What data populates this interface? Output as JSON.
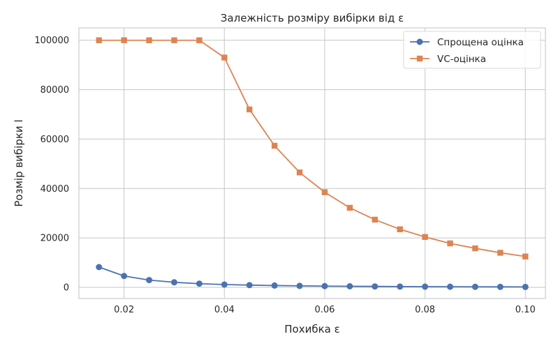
{
  "chart_data": {
    "type": "line",
    "title": "Залежність розміру вибірки від ε",
    "xlabel": "Похибка ε",
    "ylabel": "Розмір вибірки l",
    "xlim": [
      0.011,
      0.104
    ],
    "ylim": [
      -4500,
      105000
    ],
    "xticks": [
      0.02,
      0.04,
      0.06,
      0.08,
      0.1
    ],
    "xtick_labels": [
      "0.02",
      "0.04",
      "0.06",
      "0.08",
      "0.10"
    ],
    "yticks": [
      0,
      20000,
      40000,
      60000,
      80000,
      100000
    ],
    "ytick_labels": [
      "0",
      "20000",
      "40000",
      "60000",
      "80000",
      "100000"
    ],
    "grid": true,
    "legend_position": "top-right",
    "x": [
      0.015,
      0.02,
      0.025,
      0.03,
      0.035,
      0.04,
      0.045,
      0.05,
      0.055,
      0.06,
      0.065,
      0.07,
      0.075,
      0.08,
      0.085,
      0.09,
      0.095,
      0.1
    ],
    "series": [
      {
        "name": "Спрощена оцінка",
        "color": "#4c72b0",
        "marker": "circle",
        "values": [
          8200,
          4600,
          2950,
          2050,
          1500,
          1150,
          910,
          740,
          610,
          510,
          440,
          380,
          330,
          290,
          260,
          230,
          205,
          185
        ]
      },
      {
        "name": "VC-оцінка",
        "color": "#dd8452",
        "marker": "square",
        "values": [
          100000,
          100000,
          100000,
          100000,
          100000,
          93000,
          72000,
          57300,
          46500,
          38500,
          32200,
          27400,
          23500,
          20400,
          17800,
          15800,
          14000,
          12500
        ]
      }
    ]
  }
}
